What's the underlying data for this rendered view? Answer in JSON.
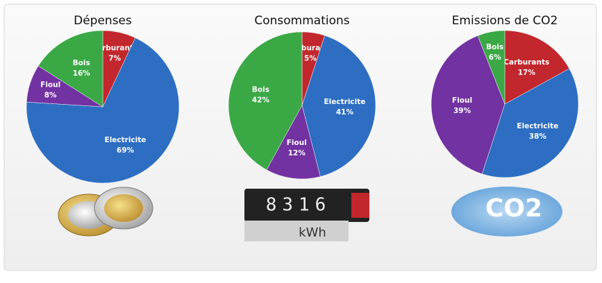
{
  "chart_data": [
    {
      "type": "pie",
      "title": "Dépenses",
      "categories": [
        "Carburants",
        "Electricite",
        "Fioul",
        "Bois"
      ],
      "values": [
        7,
        69,
        8,
        16
      ],
      "value_labels": [
        "7%",
        "69%",
        "8%",
        "16%"
      ],
      "colors": [
        "#c1272d",
        "#2d6ec2",
        "#7232a2",
        "#3ba846"
      ]
    },
    {
      "type": "pie",
      "title": "Consommations",
      "categories": [
        "Carburants",
        "Electricite",
        "Fioul",
        "Bois"
      ],
      "values": [
        5,
        41,
        12,
        42
      ],
      "value_labels": [
        "5%",
        "41%",
        "12%",
        "42%"
      ],
      "colors": [
        "#c1272d",
        "#2d6ec2",
        "#7232a2",
        "#3ba846"
      ]
    },
    {
      "type": "pie",
      "title": "Emissions de CO2",
      "categories": [
        "Carburants",
        "Electricite",
        "Fioul",
        "Bois"
      ],
      "values": [
        17,
        38,
        39,
        6
      ],
      "value_labels": [
        "17%",
        "38%",
        "39%",
        "6%"
      ],
      "colors": [
        "#c1272d",
        "#2d6ec2",
        "#7232a2",
        "#3ba846"
      ]
    }
  ],
  "illustrations": {
    "meter_digits": "8316",
    "meter_unit": "kWh",
    "cloud_text": "CO2"
  }
}
